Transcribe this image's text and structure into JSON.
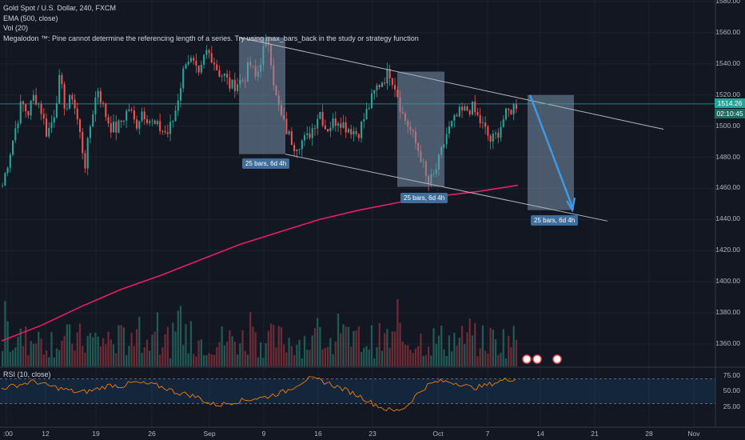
{
  "header": {
    "title": "Gold Spot / U.S. Dollar, 240, FXCM",
    "ema": "EMA (500, close)",
    "vol": "Vol (20)",
    "error": "Megalodon ™: Pine cannot determine the referencing length of a series. Try using max_bars_back in the study or strategy function",
    "rsi": "RSI (10, close)"
  },
  "price_axis": {
    "labels": [
      "1580.00",
      "1560.00",
      "1540.00",
      "1520.00",
      "1500.00",
      "1480.00",
      "1460.00",
      "1440.00",
      "1420.00",
      "1400.00",
      "1380.00",
      "1360.00"
    ],
    "current_price": "1514.26",
    "countdown": "02:10:45"
  },
  "rsi_axis": {
    "labels": [
      "75.00",
      "50.00",
      "25.00"
    ]
  },
  "time_axis": {
    "labels": [
      ":00",
      "12",
      "19",
      "26",
      "Sep",
      "9",
      "16",
      "23",
      "Oct",
      "7",
      "14",
      "21",
      "28",
      "Nov"
    ]
  },
  "annotations": [
    {
      "text": "25 bars, 6d 4h"
    },
    {
      "text": "25 bars, 6d 4h"
    },
    {
      "text": "25 bars, 6d 4h"
    }
  ],
  "chart_data": {
    "type": "candlestick",
    "title": "Gold Spot / U.S. Dollar, 240, FXCM",
    "y_range": [
      1350,
      1580
    ],
    "rsi_range": [
      0,
      100
    ],
    "close_path": [
      1462,
      1480,
      1498,
      1515,
      1508,
      1520,
      1512,
      1495,
      1505,
      1530,
      1510,
      1520,
      1500,
      1475,
      1505,
      1525,
      1510,
      1500,
      1498,
      1505,
      1512,
      1500,
      1510,
      1505,
      1500,
      1498,
      1495,
      1505,
      1525,
      1545,
      1540,
      1530,
      1548,
      1545,
      1535,
      1532,
      1525,
      1528,
      1530,
      1540,
      1530,
      1548,
      1555,
      1520,
      1505,
      1495,
      1488,
      1490,
      1492,
      1500,
      1510,
      1498,
      1502,
      1505,
      1500,
      1498,
      1495,
      1505,
      1515,
      1525,
      1530,
      1535,
      1525,
      1508,
      1500,
      1490,
      1480,
      1462,
      1468,
      1480,
      1495,
      1502,
      1508,
      1510,
      1512,
      1505,
      1498,
      1490,
      1495,
      1505,
      1510,
      1514
    ],
    "ema500": [
      1362,
      1372,
      1384,
      1395,
      1404,
      1414,
      1424,
      1432,
      1440,
      1446,
      1451,
      1455,
      1458,
      1462
    ],
    "rsi": [
      55,
      58,
      62,
      66,
      60,
      56,
      52,
      48,
      50,
      55,
      60,
      58,
      64,
      62,
      60,
      55,
      48,
      45,
      40,
      30,
      28,
      32,
      35,
      38,
      40,
      45,
      50,
      60,
      70,
      68,
      62,
      55,
      48,
      40,
      30,
      22,
      18,
      25,
      45,
      60,
      66,
      65,
      62,
      55,
      58,
      63,
      68,
      70
    ]
  }
}
